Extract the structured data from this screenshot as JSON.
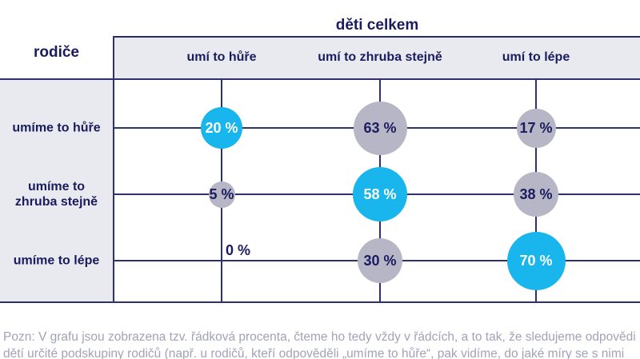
{
  "chart_data": {
    "type": "heatmap",
    "subtype": "bubble-matrix",
    "title": "děti celkem",
    "row_axis_label": "rodiče",
    "columns": [
      "umí to hůře",
      "umí to zhruba stejně",
      "umí to lépe"
    ],
    "rows": [
      "umíme to hůře",
      "umíme to zhruba stejně",
      "umíme to lépe"
    ],
    "rows_display": [
      "umíme to hůře",
      "umíme to\nzhruba stejně",
      "umíme to lépe"
    ],
    "unit": "%",
    "values": [
      [
        20,
        63,
        17
      ],
      [
        5,
        58,
        38
      ],
      [
        0,
        30,
        70
      ]
    ],
    "cells": [
      {
        "row": 0,
        "col": 0,
        "value": 20,
        "label": "20 %",
        "size": 52,
        "style": "accent"
      },
      {
        "row": 0,
        "col": 1,
        "value": 63,
        "label": "63 %",
        "size": 67,
        "style": "muted"
      },
      {
        "row": 0,
        "col": 2,
        "value": 17,
        "label": "17 %",
        "size": 49,
        "style": "muted"
      },
      {
        "row": 1,
        "col": 0,
        "value": 5,
        "label": "5 %",
        "size": 33,
        "style": "muted"
      },
      {
        "row": 1,
        "col": 1,
        "value": 58,
        "label": "58 %",
        "size": 68,
        "style": "accent"
      },
      {
        "row": 1,
        "col": 2,
        "value": 38,
        "label": "38 %",
        "size": 56,
        "style": "muted"
      },
      {
        "row": 2,
        "col": 0,
        "value": 0,
        "label": "0 %",
        "size": 0,
        "style": "none"
      },
      {
        "row": 2,
        "col": 1,
        "value": 30,
        "label": "30 %",
        "size": 56,
        "style": "muted"
      },
      {
        "row": 2,
        "col": 2,
        "value": 70,
        "label": "70 %",
        "size": 73,
        "style": "accent"
      }
    ],
    "layout_hints": {
      "grid": "on",
      "legend": "none",
      "reading": "row percentages"
    }
  },
  "note": {
    "line1": "Pozn: V grafu jsou zobrazena tzv. řádková procenta, čteme ho tedy vždy v řádcích, a to tak, že sledujeme odpovědi",
    "line2": "dětí určité podskupiny rodičů (např. u rodičů, kteří odpověděli „umíme to hůře“, pak vidíme, do jaké míry se s nimi"
  },
  "colors": {
    "accent_bubble": "#18b6ec",
    "muted_bubble": "#b6b6c6",
    "navy_text": "#1b1c5e",
    "grid_line": "#2e3170",
    "header_band_bg": "#e9e9f0",
    "note_text": "#a2a2b8",
    "text_on_accent": "#ffffff"
  }
}
